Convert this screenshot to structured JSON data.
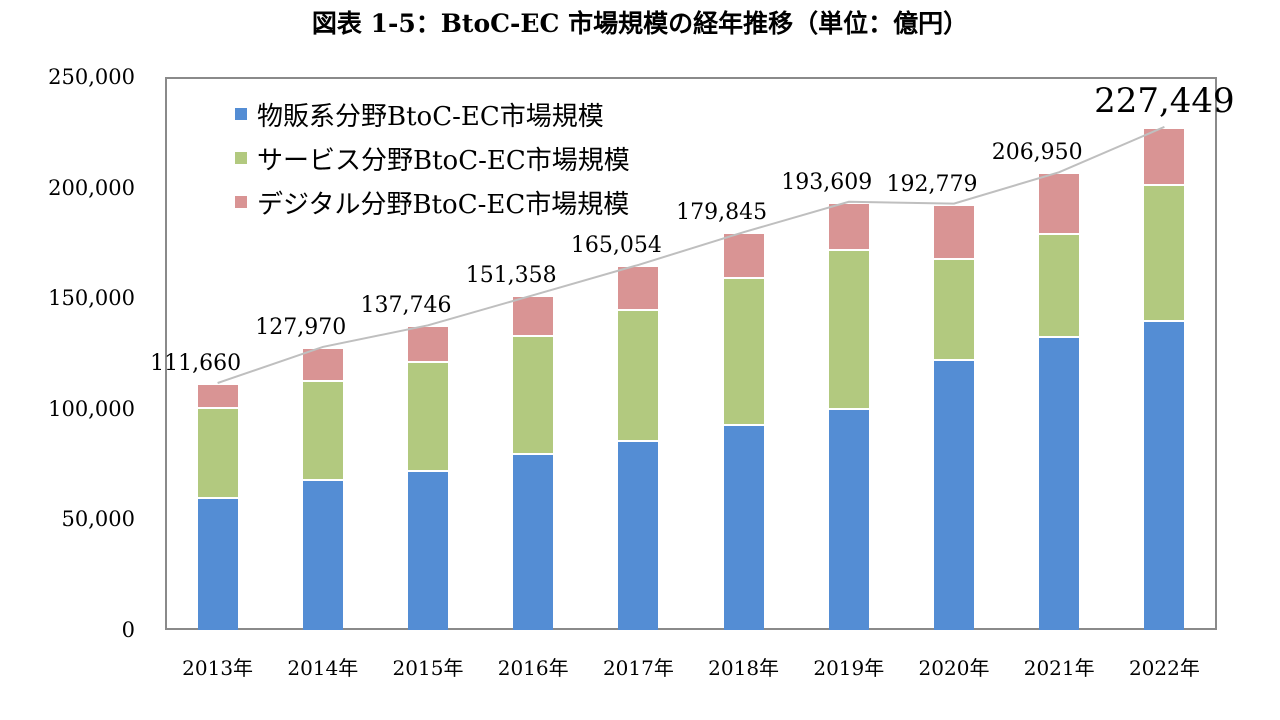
{
  "title": "図表 1-5：BtoC-EC 市場規模の経年推移（単位：億円）",
  "colors": {
    "physical": "#548dd4",
    "service": "#b2c97f",
    "digital": "#d99494",
    "axis": "#8a8a8a",
    "leader": "#bfbfbf"
  },
  "legend": [
    {
      "label": "物販系分野BtoC-EC市場規模",
      "color": "#548dd4"
    },
    {
      "label": "サービス分野BtoC-EC市場規模",
      "color": "#b2c97f"
    },
    {
      "label": "デジタル分野BtoC-EC市場規模",
      "color": "#d99494"
    }
  ],
  "y_ticks": [
    "0",
    "50,000",
    "100,000",
    "150,000",
    "200,000",
    "250,000"
  ],
  "total_labels": [
    "111,660",
    "127,970",
    "137,746",
    "151,358",
    "165,054",
    "179,845",
    "193,609",
    "192,779",
    "206,950",
    "227,449"
  ],
  "chart_data": {
    "type": "bar",
    "stacked": true,
    "title": "図表 1-5：BtoC-EC 市場規模の経年推移（単位：億円）",
    "xlabel": "",
    "ylabel": "",
    "ylim": [
      0,
      250000
    ],
    "y_ticks": [
      0,
      50000,
      100000,
      150000,
      200000,
      250000
    ],
    "grid": false,
    "legend_position": "upper-left-inside",
    "categories": [
      "2013年",
      "2014年",
      "2015年",
      "2016年",
      "2017年",
      "2018年",
      "2019年",
      "2020年",
      "2021年",
      "2022年"
    ],
    "series": [
      {
        "name": "物販系分野BtoC-EC市場規模",
        "color": "#548dd4",
        "values": [
          59931,
          68043,
          72398,
          80043,
          86008,
          92992,
          100515,
          122333,
          132865,
          139997
        ]
      },
      {
        "name": "サービス分野BtoC-EC市場規模",
        "color": "#b2c97f",
        "values": [
          40800,
          44800,
          49000,
          53100,
          58900,
          66500,
          71700,
          45800,
          46400,
          61500
        ]
      },
      {
        "name": "デジタル分野BtoC-EC市場規模",
        "color": "#d99494",
        "values": [
          10929,
          15127,
          16348,
          18215,
          20146,
          20353,
          21394,
          24646,
          27685,
          25952
        ]
      }
    ],
    "totals": [
      111660,
      127970,
      137746,
      151358,
      165054,
      179845,
      193609,
      192779,
      206950,
      227449
    ],
    "annotations": [
      "111,660",
      "127,970",
      "137,746",
      "151,358",
      "165,054",
      "179,845",
      "193,609",
      "192,779",
      "206,950",
      "227,449"
    ]
  }
}
